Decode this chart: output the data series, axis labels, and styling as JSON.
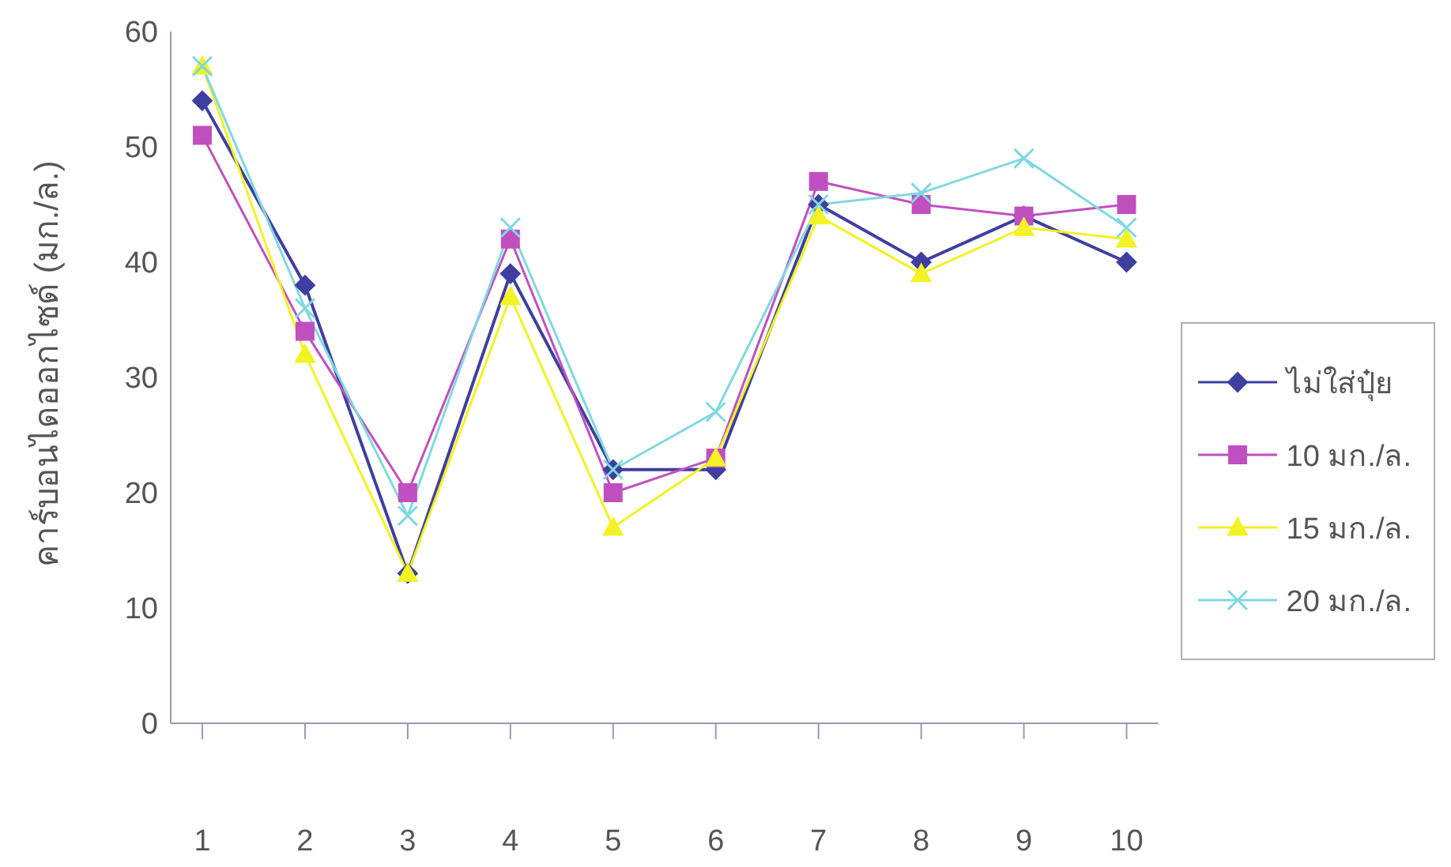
{
  "chart_data": {
    "type": "line",
    "ylabel": "คาร์บอนไดออกไซด์ (มก./ล.)",
    "categories": [
      "1",
      "2",
      "3",
      "4",
      "5",
      "6",
      "7",
      "8",
      "9",
      "10"
    ],
    "ylim": [
      0,
      60
    ],
    "yticks": [
      0,
      10,
      20,
      30,
      40,
      50,
      60
    ],
    "grid": false,
    "legend": "right",
    "line_style": "solid",
    "series": [
      {
        "name": "ไม่ใส่ปุ๋ย",
        "color": "#3f3f9f",
        "marker": "diamond",
        "values": [
          54,
          38,
          13,
          39,
          22,
          22,
          45,
          40,
          44,
          40
        ]
      },
      {
        "name": "10 มก./ล.",
        "color": "#c050c0",
        "marker": "square",
        "values": [
          51,
          34,
          20,
          42,
          20,
          23,
          47,
          45,
          44,
          45
        ]
      },
      {
        "name": "15 มก./ล.",
        "color": "#f2f224",
        "marker": "triangle",
        "values": [
          57,
          32,
          13,
          37,
          17,
          23,
          44,
          39,
          43,
          42
        ]
      },
      {
        "name": "20 มก./ล.",
        "color": "#80d8e0",
        "marker": "cross",
        "values": [
          57,
          36,
          18,
          43,
          22,
          27,
          45,
          46,
          49,
          43
        ]
      }
    ]
  }
}
